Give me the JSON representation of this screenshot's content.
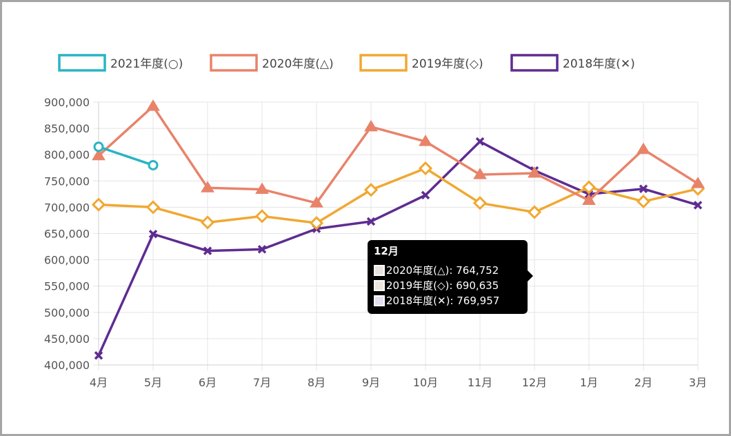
{
  "chart_data": {
    "type": "line",
    "categories": [
      "4月",
      "5月",
      "6月",
      "7月",
      "8月",
      "9月",
      "10月",
      "11月",
      "12月",
      "1月",
      "2月",
      "3月"
    ],
    "ylim": [
      400000,
      900000
    ],
    "yticks": [
      "900,000",
      "850,000",
      "800,000",
      "750,000",
      "700,000",
      "650,000",
      "600,000",
      "550,000",
      "500,000",
      "450,000",
      "400,000"
    ],
    "ytick_values": [
      900000,
      850000,
      800000,
      750000,
      700000,
      650000,
      600000,
      550000,
      500000,
      450000,
      400000
    ],
    "grid": true,
    "legend_position": "top",
    "series": [
      {
        "name": "2021年度(○)",
        "color": "#29b4c4",
        "marker": "circle",
        "values": [
          815000,
          780000,
          null,
          null,
          null,
          null,
          null,
          null,
          null,
          null,
          null,
          null
        ]
      },
      {
        "name": "2020年度(△)",
        "color": "#e8836a",
        "marker": "triangle",
        "values": [
          798000,
          892000,
          737000,
          734000,
          708000,
          853000,
          825000,
          762000,
          764752,
          713000,
          810000,
          745000
        ]
      },
      {
        "name": "2019年度(◇)",
        "color": "#f0a830",
        "marker": "diamond",
        "values": [
          705000,
          700000,
          671000,
          683000,
          670000,
          733000,
          774000,
          708000,
          690635,
          738000,
          711000,
          735000
        ]
      },
      {
        "name": "2018年度(✕)",
        "color": "#5e2c91",
        "marker": "cross",
        "values": [
          418000,
          649000,
          617000,
          620000,
          659000,
          673000,
          723000,
          825000,
          769957,
          725000,
          735000,
          704000
        ]
      }
    ],
    "tooltip": {
      "title": "12月",
      "rows": [
        {
          "text": "2020年度(△): 764,752",
          "fill": "#e8e2e0"
        },
        {
          "text": "2019年度(◇): 690,635",
          "fill": "#ece6dc"
        },
        {
          "text": "2018年度(✕): 769,957",
          "fill": "#e3dff0"
        }
      ]
    }
  }
}
